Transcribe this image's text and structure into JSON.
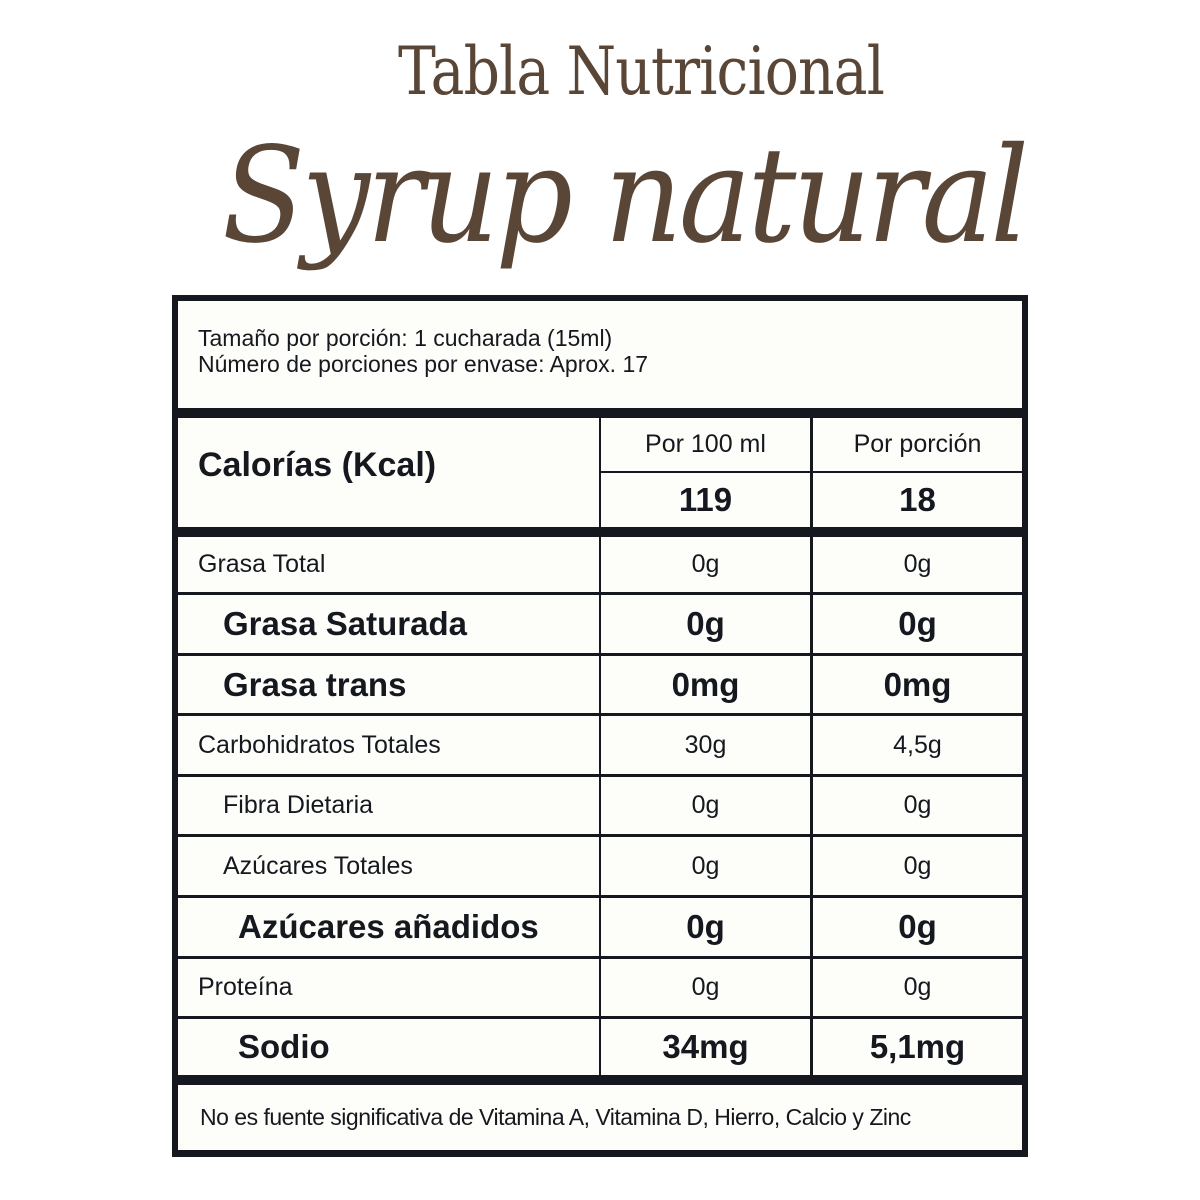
{
  "title": {
    "line1": "Tabla Nutricional",
    "line2": "Syrup natural"
  },
  "serving": {
    "size": "Tamaño por porción: 1 cucharada (15ml)",
    "count": "Número de porciones por envase: Aprox. 17"
  },
  "calories": {
    "label": "Calorías (Kcal)",
    "col1_header": "Por 100 ml",
    "col2_header": "Por porción",
    "per_100ml": "119",
    "per_serving": "18"
  },
  "rows": [
    {
      "name": "Grasa Total",
      "per_100ml": "0g",
      "per_serving": "0g"
    },
    {
      "name": "Grasa Saturada",
      "per_100ml": "0g",
      "per_serving": "0g"
    },
    {
      "name": "Grasa trans",
      "per_100ml": "0mg",
      "per_serving": "0mg"
    },
    {
      "name": "Carbohidratos Totales",
      "per_100ml": "30g",
      "per_serving": "4,5g"
    },
    {
      "name": "Fibra Dietaria",
      "per_100ml": "0g",
      "per_serving": "0g"
    },
    {
      "name": "Azúcares Totales",
      "per_100ml": "0g",
      "per_serving": "0g"
    },
    {
      "name": "Azúcares añadidos",
      "per_100ml": "0g",
      "per_serving": "0g"
    },
    {
      "name": "Proteína",
      "per_100ml": "0g",
      "per_serving": "0g"
    },
    {
      "name": "Sodio",
      "per_100ml": "34mg",
      "per_serving": "5,1mg"
    }
  ],
  "footer": "No es fuente significativa de Vitamina A, Vitamina D, Hierro, Calcio y Zinc",
  "colors": {
    "title": "#5a4637",
    "border": "#15191f",
    "cell_bg": "#fdfdfa"
  }
}
